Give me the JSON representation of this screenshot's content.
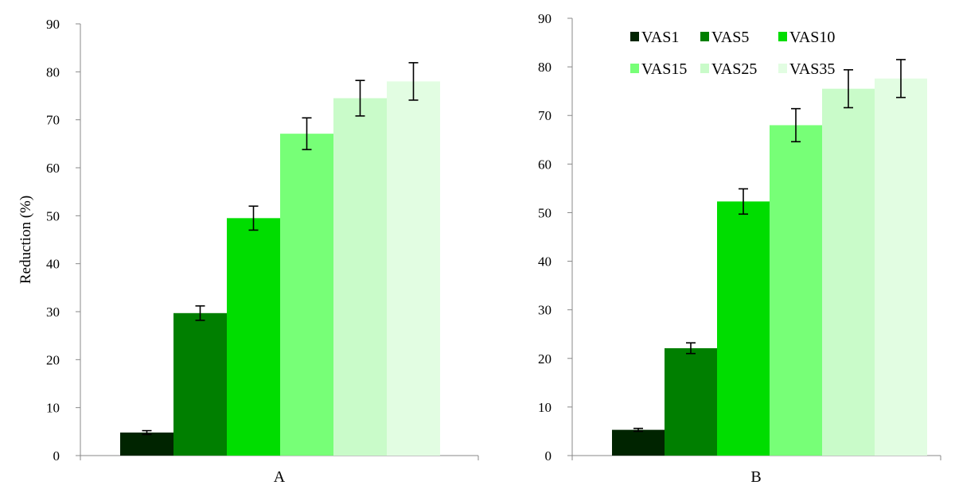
{
  "chart_data": [
    {
      "type": "bar",
      "panel_label": "A",
      "ylabel": "Reduction (%)",
      "ylim": [
        0,
        90
      ],
      "yticks": [
        0,
        10,
        20,
        30,
        40,
        50,
        60,
        70,
        80,
        90
      ],
      "grid": false,
      "legend": null,
      "series": [
        {
          "name": "VAS1",
          "value": 4.8,
          "error": 0.4,
          "color": "#002400"
        },
        {
          "name": "VAS5",
          "value": 29.7,
          "error": 1.5,
          "color": "#007f00"
        },
        {
          "name": "VAS10",
          "value": 49.5,
          "error": 2.5,
          "color": "#00dd00"
        },
        {
          "name": "VAS15",
          "value": 67.1,
          "error": 3.3,
          "color": "#77ff77"
        },
        {
          "name": "VAS25",
          "value": 74.5,
          "error": 3.7,
          "color": "#c9fbc9"
        },
        {
          "name": "VAS35",
          "value": 78.0,
          "error": 3.9,
          "color": "#e2fde2"
        }
      ]
    },
    {
      "type": "bar",
      "panel_label": "B",
      "ylabel": "",
      "ylim": [
        0,
        90
      ],
      "yticks": [
        0,
        10,
        20,
        30,
        40,
        50,
        60,
        70,
        80,
        90
      ],
      "grid": false,
      "legend": "top",
      "series": [
        {
          "name": "VAS1",
          "value": 5.3,
          "error": 0.3,
          "color": "#002400"
        },
        {
          "name": "VAS5",
          "value": 22.1,
          "error": 1.1,
          "color": "#007f00"
        },
        {
          "name": "VAS10",
          "value": 52.3,
          "error": 2.6,
          "color": "#00dd00"
        },
        {
          "name": "VAS15",
          "value": 68.0,
          "error": 3.4,
          "color": "#77ff77"
        },
        {
          "name": "VAS25",
          "value": 75.5,
          "error": 3.9,
          "color": "#c9fbc9"
        },
        {
          "name": "VAS35",
          "value": 77.6,
          "error": 3.9,
          "color": "#e2fde2"
        }
      ]
    }
  ]
}
